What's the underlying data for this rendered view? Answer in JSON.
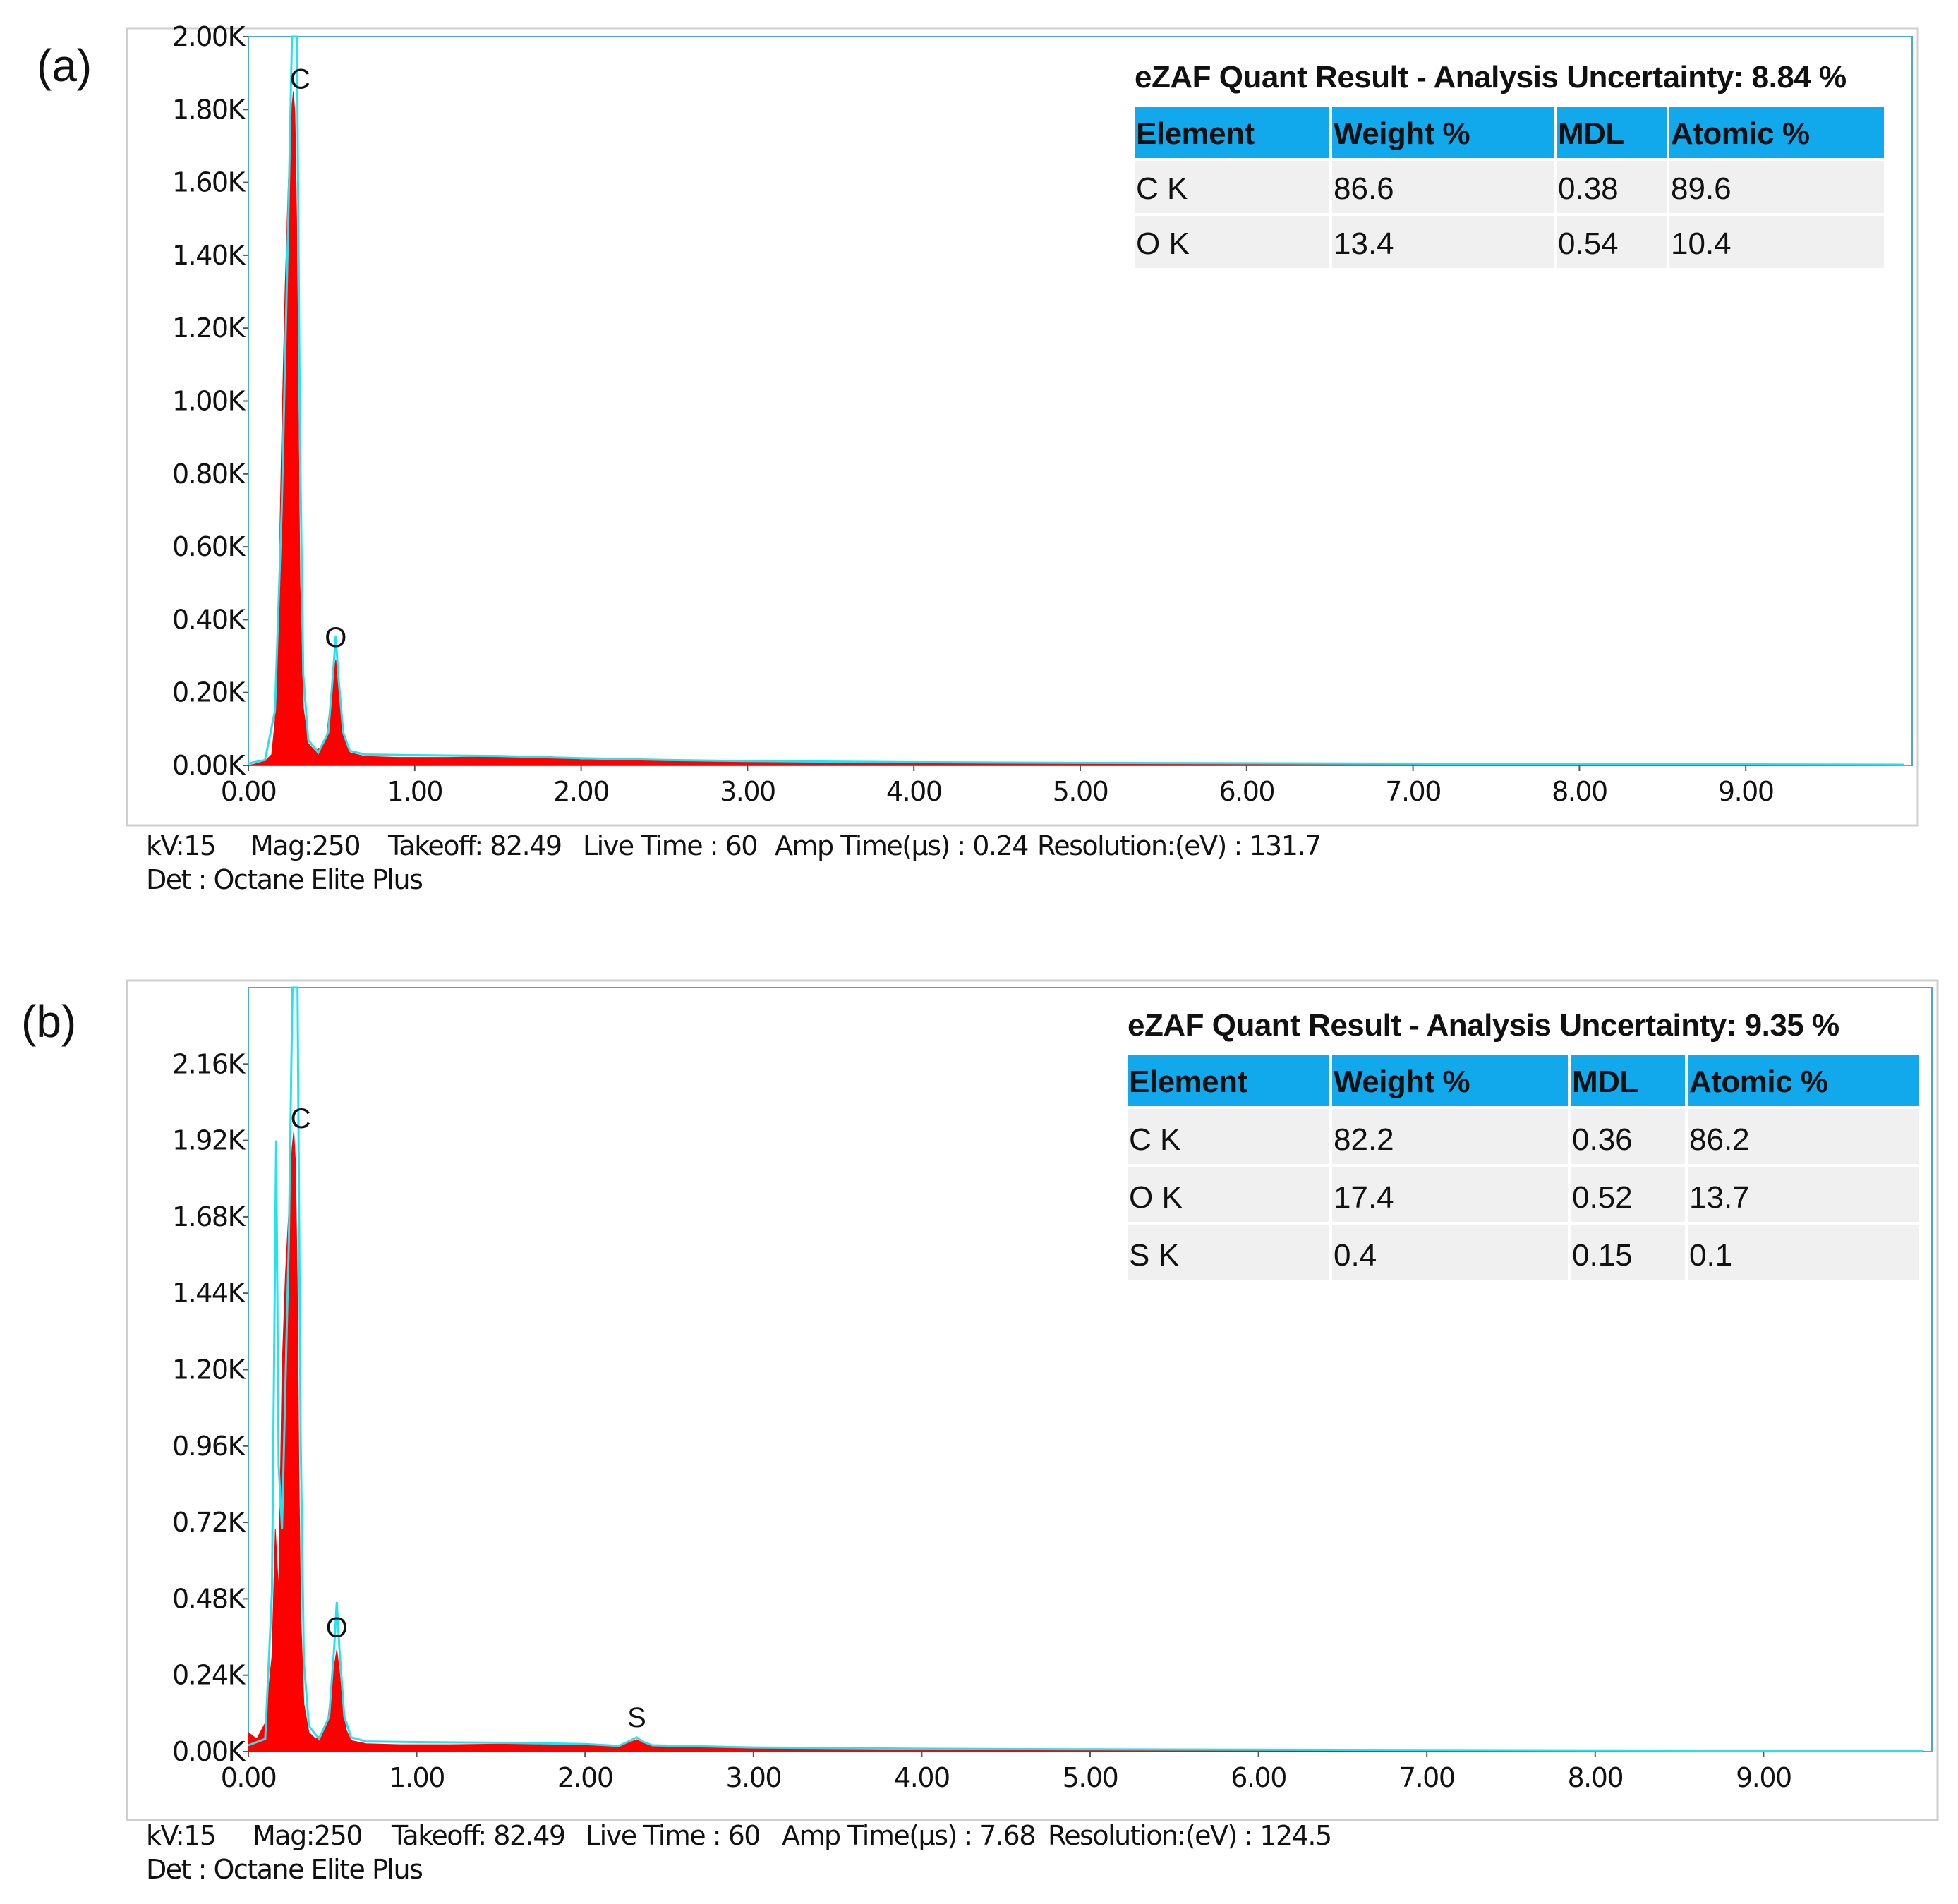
{
  "chart_data": [
    {
      "type": "area",
      "panel_label": "(a)",
      "xlabel": "",
      "ylabel": "",
      "xlim": [
        0,
        10
      ],
      "ylim": [
        0,
        2000
      ],
      "x_ticks": [
        {
          "value": 0,
          "label": "0.00"
        },
        {
          "value": 1,
          "label": "1.00"
        },
        {
          "value": 2,
          "label": "2.00"
        },
        {
          "value": 3,
          "label": "3.00"
        },
        {
          "value": 4,
          "label": "4.00"
        },
        {
          "value": 5,
          "label": "5.00"
        },
        {
          "value": 6,
          "label": "6.00"
        },
        {
          "value": 7,
          "label": "7.00"
        },
        {
          "value": 8,
          "label": "8.00"
        },
        {
          "value": 9,
          "label": "9.00"
        }
      ],
      "y_ticks": [
        {
          "value": 0,
          "label": "0.00K"
        },
        {
          "value": 200,
          "label": "0.20K"
        },
        {
          "value": 400,
          "label": "0.40K"
        },
        {
          "value": 600,
          "label": "0.60K"
        },
        {
          "value": 800,
          "label": "0.80K"
        },
        {
          "value": 1000,
          "label": "1.00K"
        },
        {
          "value": 1200,
          "label": "1.20K"
        },
        {
          "value": 1400,
          "label": "1.40K"
        },
        {
          "value": 1600,
          "label": "1.60K"
        },
        {
          "value": 1800,
          "label": "1.80K"
        },
        {
          "value": 2000,
          "label": "2.00K"
        }
      ],
      "peaks": [
        {
          "element": "C",
          "x": 0.277,
          "counts": 1850,
          "fit_counts": 2100
        },
        {
          "element": "O",
          "x": 0.525,
          "counts": 290,
          "fit_counts": 355
        }
      ],
      "spectrum": {
        "x": [
          0,
          0.05,
          0.1,
          0.14,
          0.16,
          0.18,
          0.2,
          0.22,
          0.24,
          0.26,
          0.27,
          0.28,
          0.29,
          0.3,
          0.31,
          0.33,
          0.36,
          0.4,
          0.44,
          0.47,
          0.49,
          0.51,
          0.525,
          0.54,
          0.56,
          0.58,
          0.61,
          0.7,
          0.9,
          1.2,
          1.5,
          1.8,
          2.0,
          2.5,
          3.0,
          4.0,
          5.0,
          6.0,
          7.0,
          8.0,
          9.0,
          9.95
        ],
        "counts": [
          0,
          5,
          12,
          30,
          120,
          420,
          900,
          1300,
          1600,
          1800,
          1850,
          1790,
          1500,
          1000,
          500,
          160,
          60,
          40,
          50,
          80,
          160,
          240,
          290,
          240,
          140,
          70,
          35,
          25,
          22,
          22,
          24,
          25,
          16,
          12,
          10,
          8,
          6,
          5,
          4,
          3,
          2,
          1
        ]
      },
      "fit": {
        "x": [
          0,
          0.1,
          0.16,
          0.2,
          0.24,
          0.262,
          0.277,
          0.292,
          0.31,
          0.33,
          0.36,
          0.42,
          0.48,
          0.51,
          0.525,
          0.54,
          0.57,
          0.61,
          0.7,
          1.0,
          1.5,
          2.0,
          2.5,
          3.0,
          4.0,
          5.0,
          6.0,
          7.0,
          8.0,
          9.0,
          9.95
        ],
        "counts": [
          5,
          15,
          150,
          700,
          1500,
          2100,
          2100,
          2100,
          900,
          250,
          70,
          35,
          90,
          260,
          355,
          250,
          90,
          40,
          30,
          28,
          26,
          20,
          15,
          12,
          9,
          7,
          6,
          5,
          4,
          3,
          2
        ]
      },
      "table": {
        "title": "eZAF Quant Result - Analysis Uncertainty: 8.84 %",
        "headers": [
          "Element",
          "Weight %",
          "MDL",
          "Atomic %"
        ],
        "rows": [
          [
            "C K",
            "86.6",
            "0.38",
            "89.6"
          ],
          [
            "O K",
            "13.4",
            "0.54",
            "10.4"
          ]
        ]
      },
      "footer": {
        "line1": [
          "kV:15",
          "Mag:250",
          "Takeoff: 82.49",
          "Live Time : 60",
          "Amp Time(µs) : 0.24",
          "Resolution:(eV) : 131.7"
        ],
        "line2": "Det : Octane Elite Plus"
      }
    },
    {
      "type": "area",
      "panel_label": "(b)",
      "xlabel": "",
      "ylabel": "",
      "xlim": [
        0,
        10
      ],
      "ylim": [
        0,
        2400
      ],
      "x_ticks": [
        {
          "value": 0,
          "label": "0.00"
        },
        {
          "value": 1,
          "label": "1.00"
        },
        {
          "value": 2,
          "label": "2.00"
        },
        {
          "value": 3,
          "label": "3.00"
        },
        {
          "value": 4,
          "label": "4.00"
        },
        {
          "value": 5,
          "label": "5.00"
        },
        {
          "value": 6,
          "label": "6.00"
        },
        {
          "value": 7,
          "label": "7.00"
        },
        {
          "value": 8,
          "label": "8.00"
        },
        {
          "value": 9,
          "label": "9.00"
        }
      ],
      "y_ticks": [
        {
          "value": 0,
          "label": "0.00K"
        },
        {
          "value": 240,
          "label": "0.24K"
        },
        {
          "value": 480,
          "label": "0.48K"
        },
        {
          "value": 720,
          "label": "0.72K"
        },
        {
          "value": 960,
          "label": "0.96K"
        },
        {
          "value": 1200,
          "label": "1.20K"
        },
        {
          "value": 1440,
          "label": "1.44K"
        },
        {
          "value": 1680,
          "label": "1.68K"
        },
        {
          "value": 1920,
          "label": "1.92K"
        },
        {
          "value": 2160,
          "label": "2.16K"
        }
      ],
      "peaks": [
        {
          "element": "C",
          "x": 0.277,
          "counts": 1950,
          "fit_counts": 2400
        },
        {
          "element": "O",
          "x": 0.525,
          "counts": 320,
          "fit_counts": 470
        },
        {
          "element": "S",
          "x": 2.307,
          "counts": 38,
          "fit_counts": 45
        }
      ],
      "spectrum": {
        "x": [
          0,
          0.05,
          0.1,
          0.14,
          0.16,
          0.18,
          0.2,
          0.22,
          0.24,
          0.26,
          0.27,
          0.28,
          0.29,
          0.3,
          0.31,
          0.33,
          0.36,
          0.4,
          0.44,
          0.47,
          0.49,
          0.51,
          0.525,
          0.54,
          0.56,
          0.58,
          0.61,
          0.7,
          0.9,
          1.2,
          1.5,
          1.8,
          2.0,
          2.2,
          2.27,
          2.307,
          2.34,
          2.4,
          2.6,
          3.0,
          4.0,
          5.0,
          6.0,
          7.0,
          8.0,
          9.0,
          9.95
        ],
        "counts": [
          60,
          40,
          90,
          300,
          700,
          500,
          1200,
          1500,
          1700,
          1900,
          1950,
          1850,
          1500,
          900,
          450,
          150,
          60,
          40,
          55,
          90,
          190,
          270,
          320,
          260,
          140,
          70,
          35,
          25,
          22,
          22,
          24,
          25,
          20,
          15,
          30,
          38,
          28,
          18,
          14,
          11,
          8,
          6,
          5,
          4,
          3,
          2,
          1
        ]
      },
      "fit": {
        "x": [
          0,
          0.1,
          0.14,
          0.165,
          0.18,
          0.2,
          0.24,
          0.262,
          0.277,
          0.292,
          0.31,
          0.33,
          0.36,
          0.42,
          0.48,
          0.51,
          0.525,
          0.54,
          0.57,
          0.61,
          0.7,
          1.0,
          1.5,
          2.0,
          2.2,
          2.27,
          2.307,
          2.34,
          2.4,
          3.0,
          4.0,
          5.0,
          6.0,
          7.0,
          8.0,
          9.0,
          9.95
        ],
        "counts": [
          20,
          40,
          500,
          1920,
          900,
          700,
          1600,
          2400,
          2400,
          2400,
          1000,
          280,
          80,
          40,
          110,
          330,
          470,
          330,
          110,
          45,
          32,
          30,
          28,
          24,
          18,
          35,
          45,
          32,
          20,
          13,
          9,
          7,
          6,
          5,
          4,
          3,
          2
        ]
      },
      "table": {
        "title": "eZAF Quant Result - Analysis Uncertainty: 9.35 %",
        "headers": [
          "Element",
          "Weight %",
          "MDL",
          "Atomic %"
        ],
        "rows": [
          [
            "C K",
            "82.2",
            "0.36",
            "86.2"
          ],
          [
            "O K",
            "17.4",
            "0.52",
            "13.7"
          ],
          [
            "S K",
            "0.4",
            "0.15",
            "0.1"
          ]
        ]
      },
      "footer": {
        "line1": [
          "kV:15",
          "Mag:250",
          "Takeoff: 82.49",
          "Live Time : 60",
          "Amp Time(µs) : 7.68",
          "Resolution:(eV) : 124.5"
        ],
        "line2": "Det : Octane Elite Plus"
      }
    }
  ],
  "colors": {
    "spectrum_fill": "#ff0000",
    "fit_line": "#22e4f0",
    "axis_frame": "#4aa8d8",
    "table_header": "#12a8ec",
    "table_row": "#f0f0f0",
    "text": "#111111"
  }
}
